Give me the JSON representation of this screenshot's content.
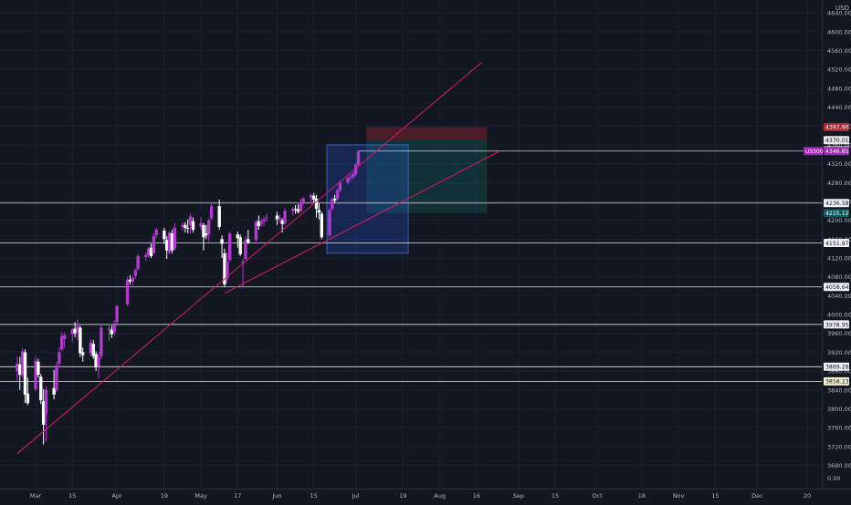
{
  "chart_data": {
    "type": "candlestick",
    "currency": "USD",
    "symbol_badge": "US500",
    "y_axis": {
      "min": 3650,
      "max": 4650,
      "ticks": [
        {
          "v": 3680,
          "label": "3680.00"
        },
        {
          "v": 3720,
          "label": "3720.00"
        },
        {
          "v": 3760,
          "label": "3760.00"
        },
        {
          "v": 3800,
          "label": "3800.00"
        },
        {
          "v": 3840,
          "label": "3840.00"
        },
        {
          "v": 3880,
          "label": "3880.00"
        },
        {
          "v": 3920,
          "label": "3920.00"
        },
        {
          "v": 3960,
          "label": "3960.00"
        },
        {
          "v": 4000,
          "label": "4000.00"
        },
        {
          "v": 4040,
          "label": "4040.00"
        },
        {
          "v": 4080,
          "label": "4080.00"
        },
        {
          "v": 4120,
          "label": "4120.00"
        },
        {
          "v": 4160,
          "label": "4160.00"
        },
        {
          "v": 4200,
          "label": "4200.00"
        },
        {
          "v": 4240,
          "label": "4240.00"
        },
        {
          "v": 4280,
          "label": "4280.00"
        },
        {
          "v": 4320,
          "label": "4320.00"
        },
        {
          "v": 4360,
          "label": "4360.00"
        },
        {
          "v": 4400,
          "label": "4400.00"
        },
        {
          "v": 4440,
          "label": "4440.00"
        },
        {
          "v": 4480,
          "label": "4480.00"
        },
        {
          "v": 4520,
          "label": "4520.00"
        },
        {
          "v": 4560,
          "label": "4560.00"
        },
        {
          "v": 4600,
          "label": "4600.00"
        },
        {
          "v": 4640,
          "label": "4640.00"
        }
      ],
      "bottom_label": "0.00"
    },
    "x_axis": {
      "ticks": [
        {
          "label": "Mar",
          "date": "2021-03-01"
        },
        {
          "label": "15",
          "date": "2021-03-15"
        },
        {
          "label": "Apr",
          "date": "2021-04-01"
        },
        {
          "label": "19",
          "date": "2021-04-19"
        },
        {
          "label": "May",
          "date": "2021-05-03"
        },
        {
          "label": "17",
          "date": "2021-05-17"
        },
        {
          "label": "Jun",
          "date": "2021-06-01"
        },
        {
          "label": "15",
          "date": "2021-06-15"
        },
        {
          "label": "Jul",
          "date": "2021-07-01"
        },
        {
          "label": "19",
          "date": "2021-07-19"
        },
        {
          "label": "Aug",
          "date": "2021-08-02"
        },
        {
          "label": "16",
          "date": "2021-08-16"
        },
        {
          "label": "Sep",
          "date": "2021-09-01"
        },
        {
          "label": "15",
          "date": "2021-09-15"
        },
        {
          "label": "Oct",
          "date": "2021-10-01"
        },
        {
          "label": "18",
          "date": "2021-10-18"
        },
        {
          "label": "Nov",
          "date": "2021-11-01"
        },
        {
          "label": "15",
          "date": "2021-11-15"
        },
        {
          "label": "Dec",
          "date": "2021-12-01"
        },
        {
          "label": "20",
          "date": "2021-12-20"
        }
      ]
    },
    "price_lines": [
      {
        "value": 4236.58,
        "label": "4236.58"
      },
      {
        "value": 4151.97,
        "label": "4151.97"
      },
      {
        "value": 4058.64,
        "label": "4058.64"
      },
      {
        "value": 3978.95,
        "label": "3978.95"
      },
      {
        "value": 3889.28,
        "label": "3889.28"
      },
      {
        "value": 3858.23,
        "label": "3858.23",
        "tag_color": "#f5f0d0"
      }
    ],
    "position_labels": [
      {
        "value": 4397.9,
        "label": "4397.90",
        "color": "#b22833"
      },
      {
        "value": 4370.01,
        "label": "4370.01",
        "color": "#e8e8e8"
      },
      {
        "value": 4348.23,
        "label": "4348.23",
        "color": "#e8e8e8"
      },
      {
        "value": 4215.12,
        "label": "4215.12",
        "color": "#0f5c60"
      }
    ],
    "last_price": {
      "value": 4346.85,
      "label": "4346.85",
      "color": "#9c27b0"
    },
    "trendlines": [
      {
        "from": {
          "date": "2021-02-22",
          "price": 3705
        },
        "to": {
          "date": "2021-08-18",
          "price": 4535
        }
      },
      {
        "from": {
          "date": "2021-05-12",
          "price": 4045
        },
        "to": {
          "date": "2021-08-25",
          "price": 4347
        }
      }
    ],
    "zones": [
      {
        "kind": "stop",
        "from_date": "2021-07-05",
        "to_date": "2021-08-20",
        "top": 4397.9,
        "bottom": 4370.01
      },
      {
        "kind": "target",
        "from_date": "2021-07-05",
        "to_date": "2021-08-20",
        "top": 4370.01,
        "bottom": 4215.12
      },
      {
        "kind": "range",
        "from_date": "2021-06-20",
        "to_date": "2021-07-21",
        "top": 4360,
        "bottom": 4130
      }
    ],
    "candles": [
      {
        "d": "2021-02-22",
        "o": 3880,
        "h": 3912,
        "l": 3860,
        "c": 3896
      },
      {
        "d": "2021-02-23",
        "o": 3894,
        "h": 3910,
        "l": 3840,
        "c": 3872
      },
      {
        "d": "2021-02-24",
        "o": 3872,
        "h": 3928,
        "l": 3866,
        "c": 3922
      },
      {
        "d": "2021-02-25",
        "o": 3920,
        "h": 3926,
        "l": 3812,
        "c": 3830
      },
      {
        "d": "2021-02-26",
        "o": 3832,
        "h": 3866,
        "l": 3808,
        "c": 3812
      },
      {
        "d": "2021-03-01",
        "o": 3842,
        "h": 3910,
        "l": 3838,
        "c": 3902
      },
      {
        "d": "2021-03-02",
        "o": 3900,
        "h": 3906,
        "l": 3866,
        "c": 3872
      },
      {
        "d": "2021-03-03",
        "o": 3868,
        "h": 3874,
        "l": 3810,
        "c": 3818
      },
      {
        "d": "2021-03-04",
        "o": 3816,
        "h": 3842,
        "l": 3724,
        "c": 3766
      },
      {
        "d": "2021-03-05",
        "o": 3790,
        "h": 3848,
        "l": 3730,
        "c": 3840
      },
      {
        "d": "2021-03-08",
        "o": 3844,
        "h": 3882,
        "l": 3820,
        "c": 3830
      },
      {
        "d": "2021-03-09",
        "o": 3840,
        "h": 3900,
        "l": 3836,
        "c": 3892
      },
      {
        "d": "2021-03-10",
        "o": 3896,
        "h": 3930,
        "l": 3888,
        "c": 3920
      },
      {
        "d": "2021-03-11",
        "o": 3926,
        "h": 3962,
        "l": 3922,
        "c": 3954
      },
      {
        "d": "2021-03-12",
        "o": 3948,
        "h": 3962,
        "l": 3930,
        "c": 3956
      },
      {
        "d": "2021-03-15",
        "o": 3958,
        "h": 3972,
        "l": 3942,
        "c": 3968
      },
      {
        "d": "2021-03-16",
        "o": 3970,
        "h": 3984,
        "l": 3952,
        "c": 3960
      },
      {
        "d": "2021-03-17",
        "o": 3962,
        "h": 3990,
        "l": 3946,
        "c": 3976
      },
      {
        "d": "2021-03-18",
        "o": 3972,
        "h": 3976,
        "l": 3910,
        "c": 3918
      },
      {
        "d": "2021-03-19",
        "o": 3920,
        "h": 3930,
        "l": 3900,
        "c": 3914
      },
      {
        "d": "2021-03-22",
        "o": 3918,
        "h": 3948,
        "l": 3912,
        "c": 3940
      },
      {
        "d": "2021-03-23",
        "o": 3938,
        "h": 3946,
        "l": 3906,
        "c": 3912
      },
      {
        "d": "2021-03-24",
        "o": 3916,
        "h": 3922,
        "l": 3880,
        "c": 3888
      },
      {
        "d": "2021-03-25",
        "o": 3890,
        "h": 3920,
        "l": 3864,
        "c": 3910
      },
      {
        "d": "2021-03-26",
        "o": 3912,
        "h": 3978,
        "l": 3906,
        "c": 3972
      },
      {
        "d": "2021-03-29",
        "o": 3968,
        "h": 3980,
        "l": 3944,
        "c": 3970
      },
      {
        "d": "2021-03-30",
        "o": 3968,
        "h": 3976,
        "l": 3950,
        "c": 3958
      },
      {
        "d": "2021-03-31",
        "o": 3962,
        "h": 3988,
        "l": 3956,
        "c": 3978
      },
      {
        "d": "2021-04-01",
        "o": 3984,
        "h": 4020,
        "l": 3980,
        "c": 4018
      },
      {
        "d": "2021-04-05",
        "o": 4022,
        "h": 4080,
        "l": 4018,
        "c": 4074
      },
      {
        "d": "2021-04-06",
        "o": 4074,
        "h": 4084,
        "l": 4064,
        "c": 4070
      },
      {
        "d": "2021-04-07",
        "o": 4070,
        "h": 4082,
        "l": 4062,
        "c": 4078
      },
      {
        "d": "2021-04-08",
        "o": 4082,
        "h": 4098,
        "l": 4076,
        "c": 4094
      },
      {
        "d": "2021-04-09",
        "o": 4096,
        "h": 4128,
        "l": 4094,
        "c": 4124
      },
      {
        "d": "2021-04-12",
        "o": 4122,
        "h": 4132,
        "l": 4114,
        "c": 4126
      },
      {
        "d": "2021-04-13",
        "o": 4126,
        "h": 4144,
        "l": 4122,
        "c": 4140
      },
      {
        "d": "2021-04-14",
        "o": 4142,
        "h": 4150,
        "l": 4120,
        "c": 4124
      },
      {
        "d": "2021-04-15",
        "o": 4130,
        "h": 4172,
        "l": 4128,
        "c": 4166
      },
      {
        "d": "2021-04-16",
        "o": 4168,
        "h": 4184,
        "l": 4162,
        "c": 4180
      },
      {
        "d": "2021-04-19",
        "o": 4178,
        "h": 4184,
        "l": 4150,
        "c": 4160
      },
      {
        "d": "2021-04-20",
        "o": 4158,
        "h": 4166,
        "l": 4118,
        "c": 4136
      },
      {
        "d": "2021-04-21",
        "o": 4132,
        "h": 4178,
        "l": 4128,
        "c": 4174
      },
      {
        "d": "2021-04-22",
        "o": 4172,
        "h": 4180,
        "l": 4130,
        "c": 4136
      },
      {
        "d": "2021-04-23",
        "o": 4140,
        "h": 4194,
        "l": 4136,
        "c": 4184
      },
      {
        "d": "2021-04-26",
        "o": 4186,
        "h": 4196,
        "l": 4178,
        "c": 4190
      },
      {
        "d": "2021-04-27",
        "o": 4190,
        "h": 4196,
        "l": 4174,
        "c": 4184
      },
      {
        "d": "2021-04-28",
        "o": 4184,
        "h": 4202,
        "l": 4172,
        "c": 4182
      },
      {
        "d": "2021-04-29",
        "o": 4190,
        "h": 4214,
        "l": 4172,
        "c": 4208
      },
      {
        "d": "2021-04-30",
        "o": 4198,
        "h": 4206,
        "l": 4174,
        "c": 4180
      },
      {
        "d": "2021-05-03",
        "o": 4186,
        "h": 4206,
        "l": 4180,
        "c": 4194
      },
      {
        "d": "2021-05-04",
        "o": 4190,
        "h": 4194,
        "l": 4136,
        "c": 4164
      },
      {
        "d": "2021-05-05",
        "o": 4172,
        "h": 4190,
        "l": 4160,
        "c": 4168
      },
      {
        "d": "2021-05-06",
        "o": 4170,
        "h": 4204,
        "l": 4154,
        "c": 4200
      },
      {
        "d": "2021-05-07",
        "o": 4204,
        "h": 4236,
        "l": 4200,
        "c": 4230
      },
      {
        "d": "2021-05-10",
        "o": 4230,
        "h": 4244,
        "l": 4180,
        "c": 4186
      },
      {
        "d": "2021-05-11",
        "o": 4160,
        "h": 4168,
        "l": 4120,
        "c": 4150
      },
      {
        "d": "2021-05-12",
        "o": 4130,
        "h": 4140,
        "l": 4058,
        "c": 4064
      },
      {
        "d": "2021-05-13",
        "o": 4076,
        "h": 4132,
        "l": 4068,
        "c": 4112
      },
      {
        "d": "2021-05-14",
        "o": 4116,
        "h": 4176,
        "l": 4112,
        "c": 4172
      },
      {
        "d": "2021-05-17",
        "o": 4170,
        "h": 4176,
        "l": 4142,
        "c": 4162
      },
      {
        "d": "2021-05-18",
        "o": 4164,
        "h": 4170,
        "l": 4124,
        "c": 4128
      },
      {
        "d": "2021-05-19",
        "o": 4112,
        "h": 4118,
        "l": 4060,
        "c": 4112
      },
      {
        "d": "2021-05-20",
        "o": 4118,
        "h": 4166,
        "l": 4114,
        "c": 4158
      },
      {
        "d": "2021-05-21",
        "o": 4160,
        "h": 4180,
        "l": 4150,
        "c": 4152
      },
      {
        "d": "2021-05-24",
        "o": 4158,
        "h": 4200,
        "l": 4154,
        "c": 4196
      },
      {
        "d": "2021-05-25",
        "o": 4198,
        "h": 4210,
        "l": 4180,
        "c": 4188
      },
      {
        "d": "2021-05-26",
        "o": 4192,
        "h": 4204,
        "l": 4186,
        "c": 4198
      },
      {
        "d": "2021-05-27",
        "o": 4198,
        "h": 4208,
        "l": 4188,
        "c": 4202
      },
      {
        "d": "2021-05-28",
        "o": 4204,
        "h": 4214,
        "l": 4196,
        "c": 4206
      },
      {
        "d": "2021-06-01",
        "o": 4210,
        "h": 4218,
        "l": 4190,
        "c": 4202
      },
      {
        "d": "2021-06-02",
        "o": 4202,
        "h": 4212,
        "l": 4194,
        "c": 4206
      },
      {
        "d": "2021-06-03",
        "o": 4200,
        "h": 4204,
        "l": 4174,
        "c": 4192
      },
      {
        "d": "2021-06-04",
        "o": 4194,
        "h": 4226,
        "l": 4190,
        "c": 4220
      },
      {
        "d": "2021-06-07",
        "o": 4220,
        "h": 4228,
        "l": 4210,
        "c": 4224
      },
      {
        "d": "2021-06-08",
        "o": 4224,
        "h": 4232,
        "l": 4214,
        "c": 4222
      },
      {
        "d": "2021-06-09",
        "o": 4224,
        "h": 4234,
        "l": 4214,
        "c": 4218
      },
      {
        "d": "2021-06-10",
        "o": 4220,
        "h": 4246,
        "l": 4216,
        "c": 4238
      },
      {
        "d": "2021-06-11",
        "o": 4238,
        "h": 4250,
        "l": 4232,
        "c": 4246
      },
      {
        "d": "2021-06-14",
        "o": 4248,
        "h": 4256,
        "l": 4234,
        "c": 4254
      },
      {
        "d": "2021-06-15",
        "o": 4252,
        "h": 4258,
        "l": 4238,
        "c": 4244
      },
      {
        "d": "2021-06-16",
        "o": 4246,
        "h": 4254,
        "l": 4206,
        "c": 4224
      },
      {
        "d": "2021-06-17",
        "o": 4222,
        "h": 4236,
        "l": 4202,
        "c": 4216
      },
      {
        "d": "2021-06-18",
        "o": 4214,
        "h": 4218,
        "l": 4160,
        "c": 4164
      },
      {
        "d": "2021-06-21",
        "o": 4168,
        "h": 4226,
        "l": 4164,
        "c": 4222
      },
      {
        "d": "2021-06-22",
        "o": 4224,
        "h": 4248,
        "l": 4220,
        "c": 4244
      },
      {
        "d": "2021-06-23",
        "o": 4246,
        "h": 4254,
        "l": 4236,
        "c": 4242
      },
      {
        "d": "2021-06-24",
        "o": 4246,
        "h": 4266,
        "l": 4242,
        "c": 4264
      },
      {
        "d": "2021-06-25",
        "o": 4264,
        "h": 4282,
        "l": 4260,
        "c": 4280
      },
      {
        "d": "2021-06-28",
        "o": 4280,
        "h": 4292,
        "l": 4276,
        "c": 4290
      },
      {
        "d": "2021-06-29",
        "o": 4290,
        "h": 4298,
        "l": 4284,
        "c": 4292
      },
      {
        "d": "2021-06-30",
        "o": 4292,
        "h": 4302,
        "l": 4286,
        "c": 4298
      },
      {
        "d": "2021-07-01",
        "o": 4298,
        "h": 4322,
        "l": 4294,
        "c": 4318
      },
      {
        "d": "2021-07-02",
        "o": 4318,
        "h": 4348,
        "l": 4314,
        "c": 4346
      }
    ]
  }
}
